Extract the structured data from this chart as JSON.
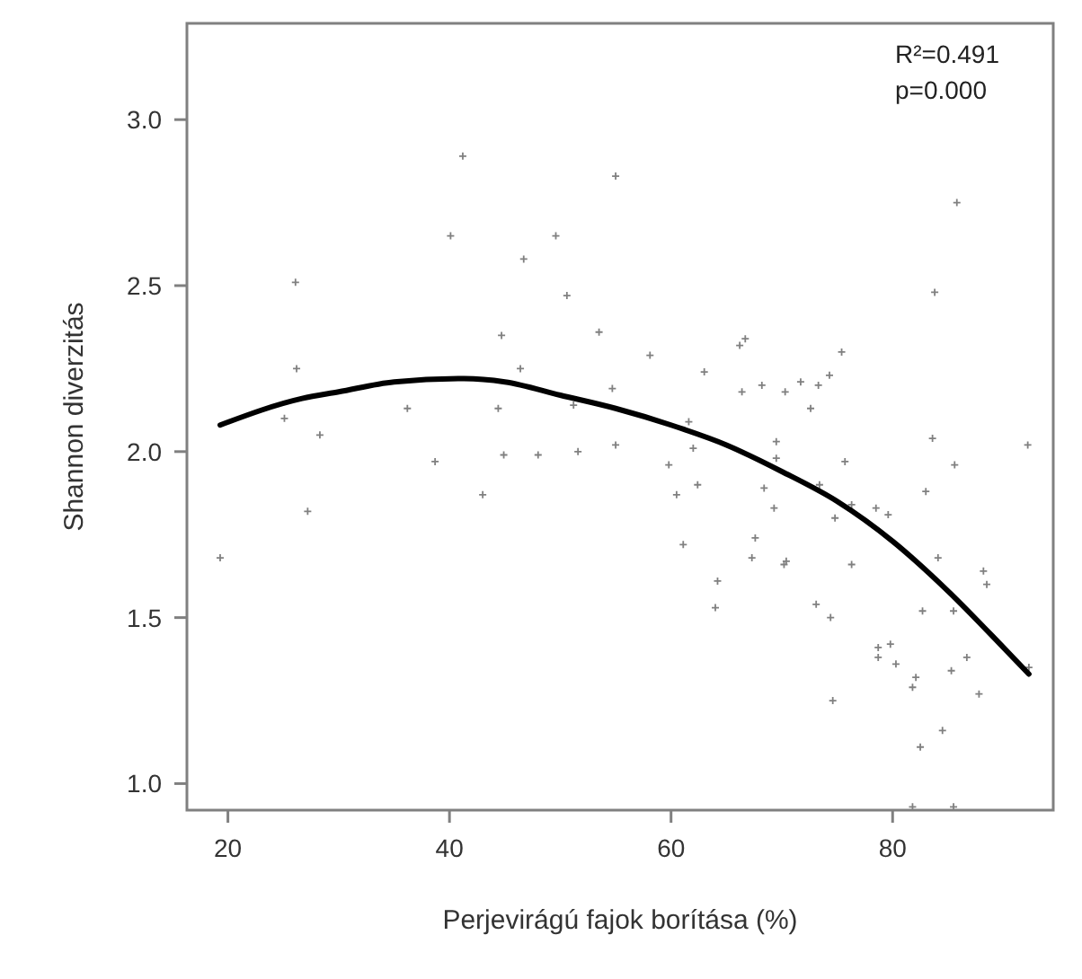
{
  "chart_data": {
    "type": "scatter",
    "xlabel": "Perjevirágú fajok borítása (%)",
    "ylabel": "Shannon diverzitás",
    "annotations": [
      "R²=0.491",
      "p=0.000"
    ],
    "xlim": [
      16.3,
      94.5
    ],
    "ylim": [
      0.92,
      3.29
    ],
    "xticks": [
      20,
      40,
      60,
      80
    ],
    "yticks": [
      {
        "value": 1,
        "label": "1.0"
      },
      {
        "value": 1.5,
        "label": "1.5"
      },
      {
        "value": 2,
        "label": "2.0"
      },
      {
        "value": 2.5,
        "label": "2.5"
      },
      {
        "value": 3,
        "label": "3.0"
      }
    ],
    "grid": false,
    "series": [
      {
        "color": "#808080",
        "marker": "cross",
        "x": [
          41.2,
          40.1,
          49.6,
          46.7,
          26.1,
          50.6,
          44.7,
          26.2,
          46.4,
          25.1,
          36.2,
          44.4,
          51.2,
          28.3,
          38.7,
          44.9,
          48.0,
          51.6,
          43.0,
          27.2,
          19.3,
          55.0,
          85.8,
          83.8,
          53.5,
          58.1,
          66.2,
          66.7,
          75.4,
          63.0,
          74.3,
          71.7,
          73.3,
          68.2,
          66.4,
          70.3,
          54.7,
          72.6,
          83.6,
          55.0,
          62.0,
          69.5,
          75.7,
          61.6,
          69.5,
          85.6,
          59.8,
          60.5,
          62.4,
          68.4,
          69.3,
          73.4,
          83.0,
          76.3,
          74.8,
          78.5,
          79.6,
          61.1,
          67.6,
          67.3,
          70.4,
          70.2,
          76.3,
          84.1,
          88.2,
          88.5,
          64.2,
          64.0,
          73.1,
          74.4,
          82.7,
          85.5,
          78.7,
          79.8,
          78.7,
          80.3,
          86.7,
          85.3,
          82.1,
          81.8,
          87.8,
          74.6,
          84.5,
          82.5,
          81.8,
          85.5,
          92.2,
          92.3
        ],
        "values": [
          2.89,
          2.65,
          2.65,
          2.58,
          2.51,
          2.47,
          2.35,
          2.25,
          2.25,
          2.1,
          2.13,
          2.13,
          2.14,
          2.05,
          1.97,
          1.99,
          1.99,
          2.0,
          1.87,
          1.82,
          1.68,
          2.83,
          2.75,
          2.48,
          2.36,
          2.29,
          2.32,
          2.34,
          2.3,
          2.24,
          2.23,
          2.21,
          2.2,
          2.2,
          2.18,
          2.18,
          2.19,
          2.13,
          2.04,
          2.02,
          2.01,
          2.03,
          1.97,
          2.09,
          1.98,
          1.96,
          1.96,
          1.87,
          1.9,
          1.89,
          1.83,
          1.9,
          1.88,
          1.84,
          1.8,
          1.83,
          1.81,
          1.72,
          1.74,
          1.68,
          1.67,
          1.66,
          1.66,
          1.68,
          1.64,
          1.6,
          1.61,
          1.53,
          1.54,
          1.5,
          1.52,
          1.52,
          1.41,
          1.42,
          1.38,
          1.36,
          1.38,
          1.34,
          1.32,
          1.29,
          1.27,
          1.25,
          1.16,
          1.11,
          0.93,
          0.93,
          2.02,
          1.35
        ]
      },
      {
        "type": "line",
        "color": "#000000",
        "marker": "none",
        "line_style": "solid",
        "x": [
          19.3,
          26.7,
          30,
          35,
          41.3,
          45,
          50,
          55,
          60,
          65,
          70,
          75,
          80,
          85,
          90,
          92.3
        ],
        "values": [
          2.08,
          2.16,
          2.18,
          2.21,
          2.22,
          2.21,
          2.17,
          2.13,
          2.08,
          2.02,
          1.94,
          1.85,
          1.73,
          1.58,
          1.41,
          1.33
        ]
      }
    ]
  }
}
